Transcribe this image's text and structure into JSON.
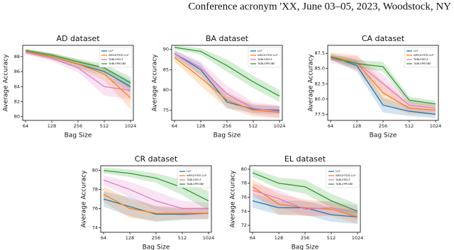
{
  "header": {
    "running_head": "Conference acronym 'XX, June 03–05, 2023, Woodstock, NY"
  },
  "chart_data": [
    {
      "type": "line",
      "title": "AD dataset",
      "x_label": "Bag Size",
      "y_label": "Average Accuracy",
      "categories": [
        "64",
        "128",
        "256",
        "512",
        "1024"
      ],
      "ylim": [
        79.5,
        89.5
      ],
      "yticks": [
        80,
        82,
        84,
        86,
        88
      ],
      "series": [
        {
          "name": "LLP",
          "color": "#1f77b4",
          "values": [
            88.7,
            88,
            87,
            86,
            84
          ],
          "errors": [
            0.3,
            0.4,
            0.5,
            0.6,
            0.8
          ]
        },
        {
          "name": "WEIGHTED LLP",
          "color": "#ff7f0e",
          "values": [
            88.7,
            88,
            87,
            85.7,
            82.5
          ],
          "errors": [
            0.3,
            0.4,
            0.6,
            0.9,
            1.5
          ]
        },
        {
          "name": "TABLESELF",
          "color": "#e377c2",
          "values": [
            88.6,
            87.8,
            86.5,
            84,
            83.5
          ],
          "errors": [
            0.3,
            0.4,
            0.6,
            1.2,
            1.2
          ]
        },
        {
          "name": "TABLEPROBE",
          "color": "#2ca02c",
          "values": [
            88.8,
            88.2,
            87.3,
            86.5,
            84.5
          ],
          "errors": [
            0.2,
            0.3,
            0.4,
            0.5,
            0.8
          ]
        }
      ]
    },
    {
      "type": "line",
      "title": "BA dataset",
      "x_label": "Bag Size",
      "y_label": "Average Accuracy",
      "categories": [
        "64",
        "128",
        "256",
        "512",
        "1024"
      ],
      "ylim": [
        72.5,
        91
      ],
      "yticks": [
        75,
        80,
        85,
        90
      ],
      "series": [
        {
          "name": "LLP",
          "color": "#1f77b4",
          "values": [
            89,
            85,
            77,
            75.3,
            75
          ],
          "errors": [
            0.8,
            1.5,
            1.5,
            1,
            1
          ]
        },
        {
          "name": "WEIGHTED LLP",
          "color": "#ff7f0e",
          "values": [
            88,
            83,
            77.5,
            75,
            74.5
          ],
          "errors": [
            1,
            2,
            2,
            1.5,
            1.5
          ]
        },
        {
          "name": "TABLESELF",
          "color": "#e377c2",
          "values": [
            89,
            85.5,
            79,
            75.5,
            74.7
          ],
          "errors": [
            0.8,
            1.5,
            2,
            1.5,
            1.5
          ]
        },
        {
          "name": "TABLEPROBE",
          "color": "#2ca02c",
          "values": [
            90.5,
            89.5,
            86,
            82,
            78.5
          ],
          "errors": [
            0.5,
            0.8,
            1.5,
            1.5,
            1.5
          ]
        }
      ]
    },
    {
      "type": "line",
      "title": "CA dataset",
      "x_label": "Bag Size",
      "y_label": "Average Accuracy",
      "categories": [
        "64",
        "128",
        "256",
        "512",
        "1024"
      ],
      "ylim": [
        76.5,
        88.8
      ],
      "yticks": [
        77.5,
        {
          "value": 80,
          "label": "80.0"
        },
        82.5,
        {
          "value": 85,
          "label": "85.0"
        },
        87.5
      ],
      "series": [
        {
          "name": "LLP",
          "color": "#1f77b4",
          "values": [
            87,
            85.5,
            79,
            78,
            77.5
          ],
          "errors": [
            0.5,
            1,
            1.2,
            0.8,
            0.6
          ]
        },
        {
          "name": "WEIGHTED LLP",
          "color": "#ff7f0e",
          "values": [
            87,
            86,
            81,
            78.5,
            78.2
          ],
          "errors": [
            0.6,
            1.2,
            1.8,
            1,
            0.8
          ]
        },
        {
          "name": "TABLESELF",
          "color": "#e377c2",
          "values": [
            86.5,
            86,
            82.5,
            79,
            78.5
          ],
          "errors": [
            0.6,
            1,
            1.5,
            1,
            0.8
          ]
        },
        {
          "name": "TABLEPROBE",
          "color": "#2ca02c",
          "values": [
            86.8,
            85.8,
            85.3,
            79.8,
            79.2
          ],
          "errors": [
            0.4,
            0.6,
            0.8,
            0.6,
            0.5
          ]
        }
      ]
    },
    {
      "type": "line",
      "title": "CR dataset",
      "x_label": "Bag Size",
      "y_label": "Average Accuracy",
      "categories": [
        "64",
        "128",
        "256",
        "512",
        "1024"
      ],
      "ylim": [
        73.5,
        80.5
      ],
      "yticks": [
        74,
        76,
        78,
        80
      ],
      "series": [
        {
          "name": "LLP",
          "color": "#1f77b4",
          "values": [
            77,
            76.2,
            75.4,
            75.4,
            75.5
          ],
          "errors": [
            0.8,
            1,
            0.8,
            0.6,
            0.6
          ]
        },
        {
          "name": "WEIGHTED LLP",
          "color": "#ff7f0e",
          "values": [
            77.5,
            76,
            75.5,
            75.5,
            75.5
          ],
          "errors": [
            0.8,
            1,
            0.8,
            0.6,
            0.6
          ]
        },
        {
          "name": "TABLESELF",
          "color": "#e377c2",
          "values": [
            79,
            78,
            76.8,
            76,
            76
          ],
          "errors": [
            0.5,
            0.8,
            1,
            0.8,
            0.6
          ]
        },
        {
          "name": "TABLEPROBE",
          "color": "#2ca02c",
          "values": [
            80,
            79.7,
            79.2,
            78.2,
            76.8
          ],
          "errors": [
            0.3,
            0.4,
            0.5,
            0.8,
            1
          ]
        }
      ]
    },
    {
      "type": "line",
      "title": "EL dataset",
      "x_label": "Bag Size",
      "y_label": "Average Accuracy",
      "categories": [
        "64",
        "128",
        "256",
        "512",
        "1024"
      ],
      "ylim": [
        71,
        80.5
      ],
      "yticks": [
        72,
        74,
        76,
        78,
        80
      ],
      "series": [
        {
          "name": "LLP",
          "color": "#1f77b4",
          "values": [
            75.5,
            74.5,
            74.5,
            73.5,
            73.2
          ],
          "errors": [
            1,
            1,
            1,
            1,
            1
          ]
        },
        {
          "name": "WEIGHTED LLP",
          "color": "#ff7f0e",
          "values": [
            77.5,
            75,
            74.5,
            74.3,
            73.2
          ],
          "errors": [
            1,
            1.5,
            1.2,
            1,
            1
          ]
        },
        {
          "name": "TABLESELF",
          "color": "#e377c2",
          "values": [
            77,
            75.8,
            74.3,
            74.5,
            73.8
          ],
          "errors": [
            1,
            1.2,
            1,
            1,
            1
          ]
        },
        {
          "name": "TABLEPROBE",
          "color": "#2ca02c",
          "values": [
            79.5,
            78,
            77.5,
            75.5,
            74
          ],
          "errors": [
            0.6,
            0.8,
            1,
            1,
            1
          ]
        }
      ]
    }
  ]
}
